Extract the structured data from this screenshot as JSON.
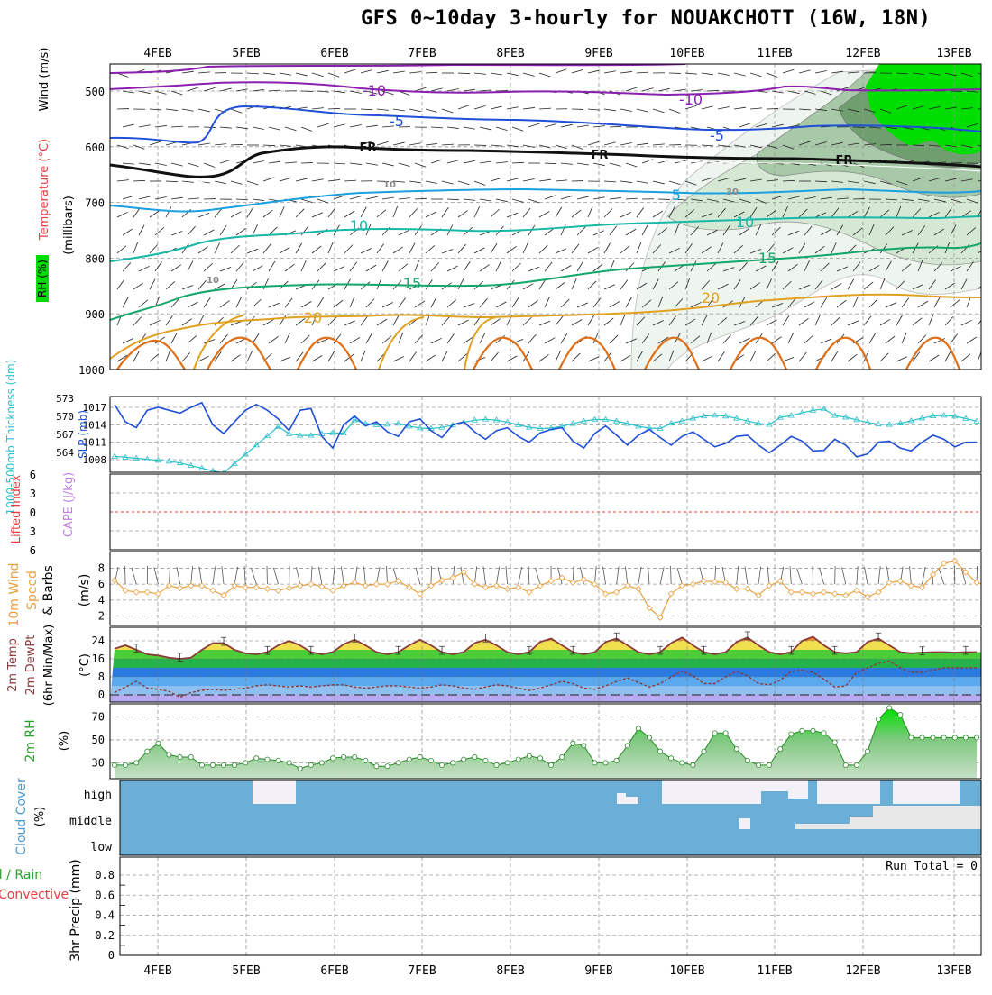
{
  "title": "GFS 0~10day 3-hourly for NOUAKCHOTT (16W, 18N)",
  "days": [
    "4FEB",
    "5FEB",
    "6FEB",
    "7FEB",
    "8FEB",
    "9FEB",
    "10FEB",
    "11FEB",
    "12FEB",
    "13FEB"
  ],
  "colors": {
    "purple": "#8a1fb0",
    "blue": "#1f4fd6",
    "black": "#111111",
    "lightblue": "#1aa0e0",
    "teal": "#17b8a8",
    "green": "#12a66a",
    "orange": "#e0a020",
    "darkorange": "#e07018",
    "rhgreen": "#00dd00",
    "cloud": "#6baed6"
  },
  "upper": {
    "ylabels": [
      "500",
      "600",
      "700",
      "800",
      "900",
      "1000"
    ],
    "axis_title_wind": "Wind (m/s)",
    "axis_title_temp": "Temperature (°C)",
    "axis_title_rh": "RH (%)",
    "axis_title_mb": "(millibars)",
    "contour_labels": [
      "-10",
      "-10",
      "-5",
      "-5",
      "FR",
      "FR",
      "FR",
      "-5",
      "5",
      "10",
      "10",
      "15",
      "15",
      "20",
      "20",
      "10",
      "10",
      "30"
    ]
  },
  "panel2": {
    "title_thick": "1000-500mb Thickness (dm)",
    "title_slp": "SLP (mb)",
    "left_ticks": [
      "573",
      "570",
      "567",
      "564"
    ],
    "right_ticks": [
      "1017",
      "1014",
      "1011",
      "1008"
    ],
    "slp_values": [
      1017.5,
      1014.5,
      1013.5,
      1016.5,
      1017,
      1016.5,
      1016,
      1017,
      1017.8,
      1014,
      1012.5,
      1014.5,
      1016.5,
      1017.5,
      1016.5,
      1015,
      1013,
      1016.5,
      1016.8,
      1012,
      1010,
      1014,
      1015.5,
      1013.8,
      1014.5,
      1012.8,
      1012,
      1014.5,
      1015,
      1013,
      1011.8,
      1014,
      1014.5,
      1012.8,
      1011.5,
      1013,
      1013.5,
      1012,
      1011,
      1012.6,
      1013.2,
      1013.5,
      1011.2,
      1010,
      1012.5,
      1013.8,
      1012.2,
      1010.5,
      1012.2,
      1013.2,
      1011.8,
      1010.5,
      1012,
      1012.8,
      1011.5,
      1010.2,
      1010.8,
      1012,
      1012.2,
      1010.5,
      1009.2,
      1010.5,
      1012,
      1011.2,
      1009.5,
      1009.6,
      1011.5,
      1010.5,
      1008.5,
      1009,
      1011,
      1011.2,
      1010,
      1009.5,
      1011,
      1012.2,
      1011.5,
      1010.2,
      1011,
      1011
    ]
  },
  "panel3": {
    "title_li": "Lifted Index",
    "title_cape": "CAPE (J/kg)",
    "ticks": [
      "6",
      "3",
      "0",
      "3",
      "6"
    ]
  },
  "panel4": {
    "title_a": "10m Wind",
    "title_b": "Speed",
    "title_c": "& Barbs",
    "title_d": "(m/s)",
    "ticks": [
      "8",
      "6",
      "4",
      "2"
    ],
    "speed_values": [
      6.5,
      5.2,
      5.0,
      5.0,
      4.8,
      5.8,
      5.5,
      5.8,
      5.8,
      5.2,
      4.6,
      5.8,
      5.6,
      5.6,
      5.4,
      5.2,
      5.5,
      5.8,
      6.0,
      5.7,
      5.2,
      5.8,
      6.2,
      5.8,
      6.0,
      6.0,
      6.4,
      5.6,
      4.8,
      5.8,
      6.5,
      6.8,
      7.5,
      6.0,
      5.6,
      5.8,
      5.4,
      5.6,
      5.0,
      5.8,
      6.4,
      6.8,
      6.2,
      6.6,
      6.0,
      4.8,
      5.0,
      5.8,
      5.4,
      3.0,
      1.8,
      4.8,
      5.8,
      6.0,
      6.4,
      6.3,
      6.2,
      5.4,
      5.4,
      4.6,
      5.8,
      6.4,
      5.0,
      5.0,
      4.8,
      5.0,
      4.8,
      4.6,
      5.2,
      4.4,
      5.0,
      6.2,
      6.4,
      5.8,
      5.6,
      7.2,
      8.6,
      8.9,
      7.5,
      6.2,
      5.8,
      6.2
    ]
  },
  "panel5": {
    "title_a": "2m Temp",
    "title_b": "2m DewPt",
    "title_c": "(6hr Min/Max)",
    "title_d": "(°C)",
    "ticks": [
      "24",
      "16",
      "8",
      "0"
    ],
    "temp_values": [
      20.5,
      22,
      20,
      18,
      17.5,
      16.5,
      16,
      16.5,
      20,
      23,
      23,
      20,
      18.5,
      18,
      19,
      22,
      24,
      22,
      19,
      18,
      19,
      22.5,
      24.5,
      22,
      19,
      18,
      19,
      22,
      24.5,
      22,
      19,
      18,
      19,
      23,
      24.5,
      22,
      19,
      18,
      19,
      23.5,
      25,
      22,
      19,
      18,
      19,
      23.5,
      25,
      22,
      19,
      18,
      19,
      23,
      25.5,
      22,
      19,
      18,
      19,
      23.5,
      25.5,
      22,
      19,
      18,
      19,
      24,
      25.8,
      22,
      19,
      18.5,
      19,
      23.5,
      25,
      22,
      19,
      18.5,
      18.8,
      19,
      19,
      18.8,
      19,
      19
    ],
    "dewpt_values": [
      1,
      3.5,
      6,
      3,
      2.5,
      1.5,
      -1,
      1,
      2,
      2.5,
      2,
      2.5,
      3,
      4,
      4.5,
      4,
      3.5,
      4,
      3.5,
      4,
      4.5,
      4.5,
      3.5,
      3,
      3.5,
      4,
      4,
      3.5,
      3,
      3.5,
      4.5,
      4,
      3,
      2.5,
      3.5,
      4.5,
      4,
      3,
      2,
      3,
      4.5,
      6,
      5,
      3,
      2.5,
      4,
      6,
      7.5,
      5.5,
      3.5,
      5,
      8,
      10.5,
      8.5,
      5,
      5,
      8,
      10.5,
      8.5,
      5,
      4.5,
      6.5,
      10.5,
      11,
      10,
      7,
      3.5,
      4,
      10,
      12,
      14,
      15,
      12,
      10,
      10,
      11,
      12,
      12,
      12,
      12
    ]
  },
  "panel6": {
    "title": "2m RH",
    "units": "(%)",
    "ticks": [
      "70",
      "50",
      "30"
    ],
    "rh_values": [
      28,
      28,
      30,
      40,
      47,
      37,
      35,
      35,
      28,
      28,
      28,
      28,
      30,
      34,
      33,
      32,
      30,
      25,
      28,
      30,
      34,
      35,
      35,
      32,
      27,
      27,
      30,
      33,
      35,
      32,
      28,
      30,
      33,
      35,
      32,
      28,
      30,
      33,
      36,
      34,
      28,
      35,
      47,
      45,
      30,
      30,
      32,
      45,
      60,
      52,
      40,
      34,
      30,
      28,
      40,
      56,
      56,
      42,
      32,
      28,
      28,
      42,
      55,
      58,
      58,
      56,
      48,
      28,
      28,
      40,
      68,
      78,
      72,
      52,
      52,
      52,
      52,
      52,
      52,
      52
    ]
  },
  "panel7": {
    "title": "Cloud Cover",
    "units": "(%)",
    "labels": [
      "high",
      "middle",
      "low"
    ]
  },
  "panel8": {
    "title_a": "Total / Rain",
    "title_b": "Convective",
    "title_c": "3hr Precip (mm)",
    "ticks": [
      "0.8",
      "0.6",
      "0.4",
      "0.2",
      "0"
    ],
    "run_total": "Run Total = 0"
  }
}
